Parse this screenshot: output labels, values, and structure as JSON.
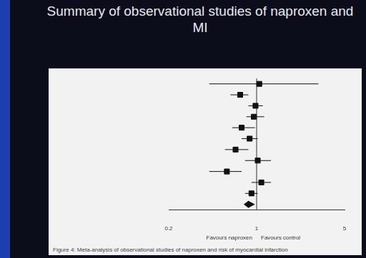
{
  "chart_data": {
    "type": "forest",
    "title": "Summary of observational studies of naproxen and MI",
    "caption": "Figure 4: Meta-analysis of observational studies of naproxen and risk of myocardial infarction",
    "annotations": [
      "Favours naproxen",
      "Favours control"
    ],
    "categories": [
      null,
      null,
      null,
      null,
      null,
      null,
      null,
      null,
      null,
      null,
      null,
      null
    ],
    "series": [
      {
        "marker": "square",
        "color": "#111111",
        "values": [
          1.05,
          0.74,
          0.98,
          0.95,
          0.76,
          0.88,
          0.68,
          1.02,
          0.58,
          1.09,
          0.91,
          null
        ],
        "ci_low": [
          0.42,
          0.62,
          0.86,
          0.83,
          0.64,
          0.76,
          0.56,
          0.81,
          0.42,
          0.91,
          0.81,
          null
        ],
        "ci_high": [
          3.1,
          0.86,
          1.12,
          1.15,
          0.97,
          1.02,
          0.86,
          1.3,
          0.76,
          1.3,
          1.02,
          null
        ]
      },
      {
        "marker": "diamond",
        "color": "#111111",
        "values": [
          null,
          null,
          null,
          null,
          null,
          null,
          null,
          null,
          null,
          null,
          null,
          0.86
        ],
        "ci_low": [
          null,
          null,
          null,
          null,
          null,
          null,
          null,
          null,
          null,
          null,
          null,
          0.79
        ],
        "ci_high": [
          null,
          null,
          null,
          null,
          null,
          null,
          null,
          null,
          null,
          null,
          null,
          0.97
        ]
      }
    ],
    "reference": 1,
    "log": "x",
    "xlim": [
      0.2,
      5
    ],
    "xticks": [
      0.2,
      1,
      5
    ],
    "grid": false
  }
}
